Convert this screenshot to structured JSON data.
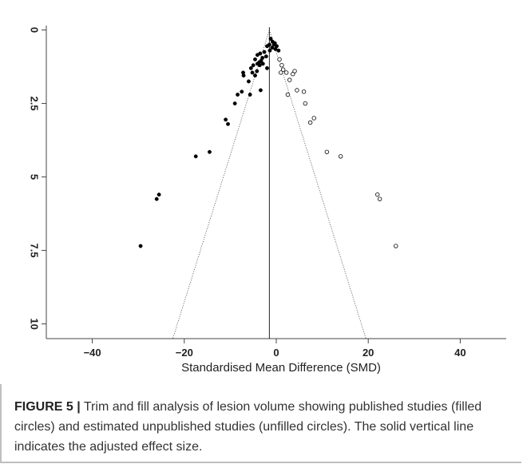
{
  "chart_data": {
    "type": "scatter",
    "title": "",
    "xlabel": "Standardised Mean Difference (SMD)",
    "ylabel": "",
    "xlim": [
      -50,
      50
    ],
    "ylim": [
      10.5,
      -0.15
    ],
    "x_ticks": [
      -40,
      -20,
      0,
      20,
      40
    ],
    "x_tick_labels": [
      "−40",
      "−20",
      "0",
      "20",
      "40"
    ],
    "y_ticks": [
      0,
      2.5,
      5,
      7.5,
      10
    ],
    "y_tick_labels": [
      "0",
      "2.5",
      "5",
      "7.5",
      "10"
    ],
    "grid": false,
    "adjusted_effect": -1.5,
    "funnel_limits": {
      "top": [
        -1.5,
        0
      ],
      "bottom_left": [
        -22.5,
        10.5
      ],
      "bottom_right": [
        19.5,
        10.5
      ]
    },
    "series": [
      {
        "marker": "filled",
        "color": "#000000",
        "points": [
          [
            -1.2,
            0.3
          ],
          [
            -0.8,
            0.4
          ],
          [
            -0.3,
            0.45
          ],
          [
            0.1,
            0.55
          ],
          [
            -0.5,
            0.5
          ],
          [
            -1.5,
            0.5
          ],
          [
            -2.0,
            0.55
          ],
          [
            -0.9,
            0.6
          ],
          [
            -0.2,
            0.65
          ],
          [
            0.5,
            0.7
          ],
          [
            -1.4,
            0.7
          ],
          [
            -2.6,
            0.75
          ],
          [
            -3.5,
            0.8
          ],
          [
            -4.1,
            0.85
          ],
          [
            -2.2,
            0.9
          ],
          [
            -3.0,
            0.95
          ],
          [
            -4.6,
            1.0
          ],
          [
            -3.3,
            1.05
          ],
          [
            -3.7,
            1.1
          ],
          [
            -4.1,
            1.15
          ],
          [
            -2.9,
            1.15
          ],
          [
            -5.0,
            1.2
          ],
          [
            -3.6,
            1.2
          ],
          [
            -5.5,
            1.3
          ],
          [
            -2.0,
            1.3
          ],
          [
            -4.2,
            1.4
          ],
          [
            -5.2,
            1.45
          ],
          [
            -7.2,
            1.45
          ],
          [
            -4.6,
            1.55
          ],
          [
            -7.1,
            1.55
          ],
          [
            -6.0,
            1.75
          ],
          [
            -3.4,
            2.05
          ],
          [
            -7.5,
            2.1
          ],
          [
            -8.4,
            2.2
          ],
          [
            -5.7,
            2.2
          ],
          [
            -9.0,
            2.5
          ],
          [
            -11.0,
            3.05
          ],
          [
            -10.5,
            3.2
          ],
          [
            -14.5,
            4.15
          ],
          [
            -17.5,
            4.3
          ],
          [
            -25.5,
            5.6
          ],
          [
            -26.0,
            5.75
          ],
          [
            -29.5,
            7.35
          ]
        ]
      },
      {
        "marker": "unfilled",
        "color": "#000000",
        "points": [
          [
            0.7,
            1.0
          ],
          [
            1.2,
            1.2
          ],
          [
            1.5,
            1.35
          ],
          [
            4.0,
            1.4
          ],
          [
            1.0,
            1.45
          ],
          [
            2.2,
            1.45
          ],
          [
            3.6,
            1.5
          ],
          [
            2.9,
            1.7
          ],
          [
            6.0,
            2.1
          ],
          [
            4.5,
            2.05
          ],
          [
            2.5,
            2.2
          ],
          [
            6.3,
            2.5
          ],
          [
            8.2,
            3.0
          ],
          [
            7.4,
            3.15
          ],
          [
            11.0,
            4.15
          ],
          [
            14.0,
            4.3
          ],
          [
            22.0,
            5.6
          ],
          [
            22.5,
            5.75
          ],
          [
            26.0,
            7.35
          ]
        ]
      }
    ]
  },
  "caption": {
    "label": "FIGURE 5 |",
    "text": " Trim and fill analysis of lesion volume showing published studies (filled circles) and estimated unpublished studies (unfilled circles). The solid vertical line indicates the adjusted effect size."
  }
}
